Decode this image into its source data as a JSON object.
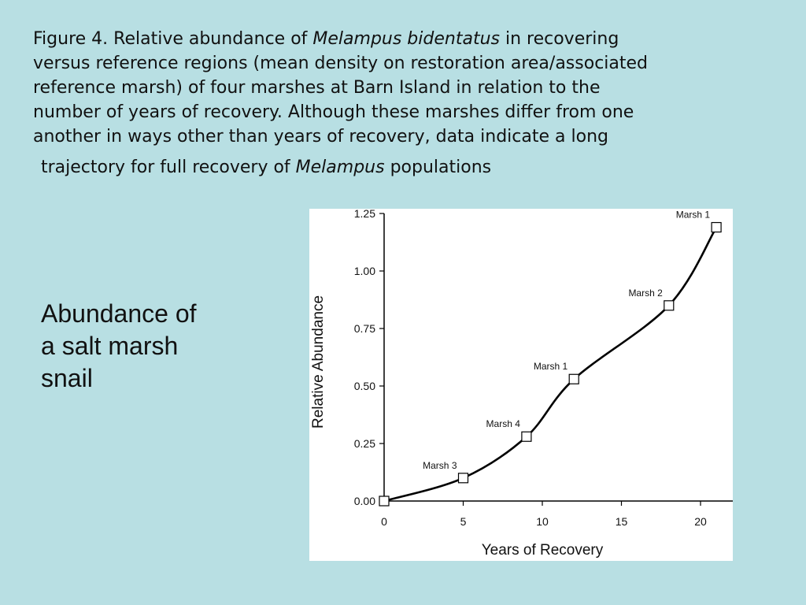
{
  "caption": {
    "line1_pre": "Figure 4. Relative abundance of ",
    "line1_italic": "Melampus bidentatus",
    "line1_post": " in recovering",
    "line2": "versus reference regions (mean density on restoration area/associated",
    "line3": "reference marsh) of four marshes at Barn Island in relation to the",
    "line4": "number of years of recovery. Although these marshes differ from one",
    "line5": "another in ways other than years of recovery, data indicate a long",
    "line6_pre": "trajectory for full recovery of ",
    "line6_italic": "Melampus",
    "line6_post": " populations"
  },
  "side_label": {
    "line1": "Abundance of",
    "line2": "a salt marsh",
    "line3": "snail"
  },
  "chart_data": {
    "type": "line",
    "title": "",
    "xlabel": "Years of Recovery",
    "ylabel": "Relative Abundance",
    "xlim": [
      0,
      22
    ],
    "ylim": [
      0,
      1.25
    ],
    "xticks": [
      "0",
      "5",
      "10",
      "15",
      "20"
    ],
    "xtick_values": [
      0,
      5,
      10,
      15,
      20
    ],
    "yticks": [
      "0.00",
      "0.25",
      "0.50",
      "0.75",
      "1.00",
      "1.25"
    ],
    "ytick_values": [
      0,
      0.25,
      0.5,
      0.75,
      1.0,
      1.25
    ],
    "grid": false,
    "series": [
      {
        "points": [
          {
            "x": 0,
            "y": 0.0,
            "label": ""
          },
          {
            "x": 5,
            "y": 0.1,
            "label": "Marsh 3"
          },
          {
            "x": 9,
            "y": 0.28,
            "label": "Marsh 4"
          },
          {
            "x": 12,
            "y": 0.53,
            "label": "Marsh 1"
          },
          {
            "x": 18,
            "y": 0.85,
            "label": "Marsh 2"
          },
          {
            "x": 21,
            "y": 1.19,
            "label": "Marsh 1"
          }
        ]
      }
    ],
    "marker": "open-square",
    "colors": {
      "line": "#000000",
      "panel": "#ffffff",
      "background": "#b8dfe3"
    }
  }
}
